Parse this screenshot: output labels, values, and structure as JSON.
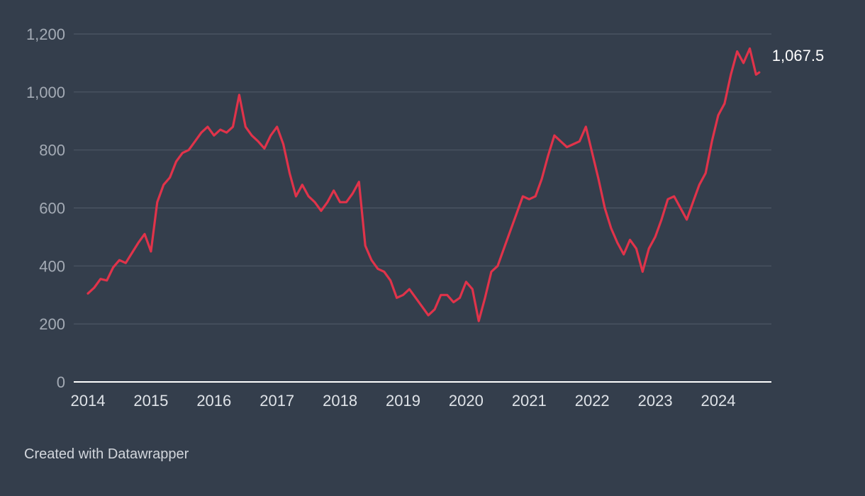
{
  "footer": {
    "credit": "Created with Datawrapper"
  },
  "colors": {
    "background": "#343e4c",
    "line": "#e0334a",
    "grid": "#4e5866",
    "end_label": "#ffffff"
  },
  "chart_data": {
    "type": "line",
    "title": "",
    "xlabel": "",
    "ylabel": "",
    "xlim": [
      2014.0,
      2024.65
    ],
    "ylim": [
      0,
      1200
    ],
    "y_ticks": [
      0,
      200,
      400,
      600,
      800,
      1000,
      1200
    ],
    "y_tick_labels": [
      "0",
      "200",
      "400",
      "600",
      "800",
      "1,000",
      "1,200"
    ],
    "x_ticks": [
      2014,
      2015,
      2016,
      2017,
      2018,
      2019,
      2020,
      2021,
      2022,
      2023,
      2024
    ],
    "x_tick_labels": [
      "2014",
      "2015",
      "2016",
      "2017",
      "2018",
      "2019",
      "2020",
      "2021",
      "2022",
      "2023",
      "2024"
    ],
    "grid": true,
    "end_label": "1,067.5",
    "series": [
      {
        "color": "#e0334a",
        "x": [
          2014.0,
          2014.1,
          2014.2,
          2014.3,
          2014.4,
          2014.5,
          2014.6,
          2014.7,
          2014.8,
          2014.9,
          2015.0,
          2015.1,
          2015.2,
          2015.3,
          2015.4,
          2015.5,
          2015.6,
          2015.7,
          2015.8,
          2015.9,
          2016.0,
          2016.1,
          2016.2,
          2016.3,
          2016.4,
          2016.5,
          2016.6,
          2016.7,
          2016.8,
          2016.9,
          2017.0,
          2017.1,
          2017.2,
          2017.3,
          2017.4,
          2017.5,
          2017.6,
          2017.7,
          2017.8,
          2017.9,
          2018.0,
          2018.1,
          2018.2,
          2018.3,
          2018.4,
          2018.5,
          2018.6,
          2018.7,
          2018.8,
          2018.9,
          2019.0,
          2019.1,
          2019.2,
          2019.3,
          2019.4,
          2019.5,
          2019.6,
          2019.7,
          2019.8,
          2019.9,
          2020.0,
          2020.1,
          2020.2,
          2020.3,
          2020.4,
          2020.5,
          2020.6,
          2020.7,
          2020.8,
          2020.9,
          2021.0,
          2021.1,
          2021.2,
          2021.3,
          2021.4,
          2021.5,
          2021.6,
          2021.7,
          2021.8,
          2021.9,
          2022.0,
          2022.1,
          2022.2,
          2022.3,
          2022.4,
          2022.5,
          2022.6,
          2022.7,
          2022.8,
          2022.9,
          2023.0,
          2023.1,
          2023.2,
          2023.3,
          2023.4,
          2023.5,
          2023.6,
          2023.7,
          2023.8,
          2023.9,
          2024.0,
          2024.1,
          2024.2,
          2024.3,
          2024.4,
          2024.5,
          2024.6,
          2024.65
        ],
        "values": [
          305,
          325,
          355,
          350,
          395,
          420,
          410,
          445,
          480,
          510,
          450,
          620,
          680,
          705,
          760,
          790,
          800,
          830,
          860,
          880,
          850,
          870,
          860,
          880,
          990,
          880,
          850,
          830,
          805,
          850,
          880,
          820,
          720,
          640,
          680,
          640,
          620,
          590,
          620,
          660,
          620,
          620,
          650,
          690,
          470,
          420,
          390,
          380,
          350,
          290,
          300,
          320,
          290,
          260,
          230,
          250,
          300,
          300,
          275,
          290,
          345,
          320,
          210,
          290,
          380,
          400,
          460,
          520,
          580,
          640,
          630,
          640,
          700,
          780,
          850,
          830,
          810,
          820,
          830,
          880,
          790,
          700,
          600,
          530,
          480,
          440,
          490,
          460,
          380,
          460,
          500,
          560,
          630,
          640,
          600,
          560,
          620,
          680,
          720,
          830,
          920,
          960,
          1060,
          1140,
          1100,
          1150,
          1060,
          1067.5
        ]
      }
    ]
  }
}
